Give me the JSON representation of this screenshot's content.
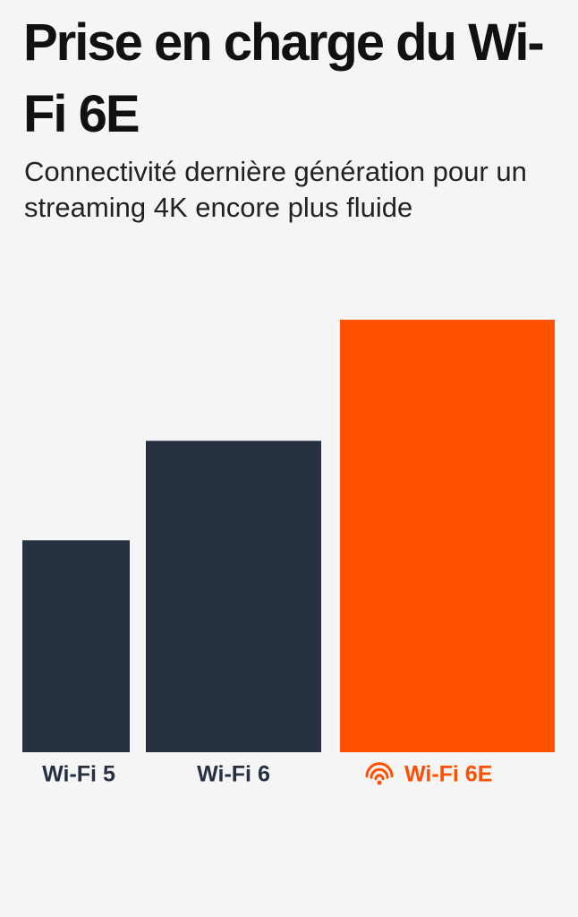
{
  "chart_data": {
    "type": "bar",
    "title": "Prise en charge du Wi-Fi 6E",
    "subtitle": "Connectivité dernière génération pour un streaming 4K encore plus fluide",
    "categories": [
      "Wi-Fi 5",
      "Wi-Fi 6",
      "Wi-Fi 6E"
    ],
    "values": [
      49,
      72,
      100
    ],
    "colors": [
      "#253040",
      "#253040",
      "#ff5000"
    ],
    "ylim": [
      0,
      100
    ]
  }
}
